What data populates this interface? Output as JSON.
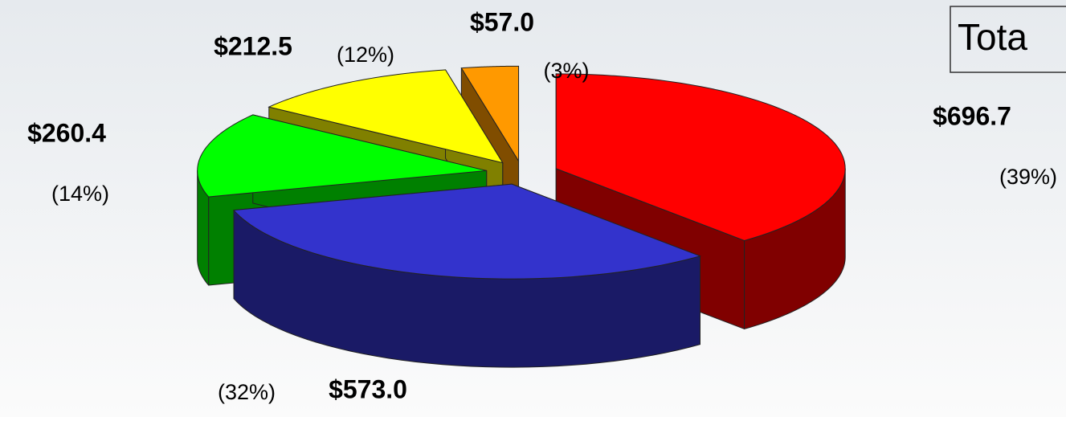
{
  "chart_data": {
    "type": "pie",
    "categories": [
      "Red",
      "Blue",
      "Green",
      "Yellow",
      "Orange"
    ],
    "values": [
      696.7,
      573.0,
      260.4,
      212.5,
      57.0
    ],
    "value_labels": [
      "$696.7",
      "$573.0",
      "$260.4",
      "$212.5",
      "$57.0"
    ],
    "percent_labels": [
      "(39%)",
      "(32%)",
      "(14%)",
      "(12%)",
      "(3%)"
    ],
    "colors": [
      "#ff0000",
      "#3333cc",
      "#00ff00",
      "#ffff00",
      "#ff9900"
    ],
    "side_colors": [
      "#800000",
      "#1a1a66",
      "#008000",
      "#808000",
      "#804d00"
    ],
    "total_label": "Tota"
  }
}
